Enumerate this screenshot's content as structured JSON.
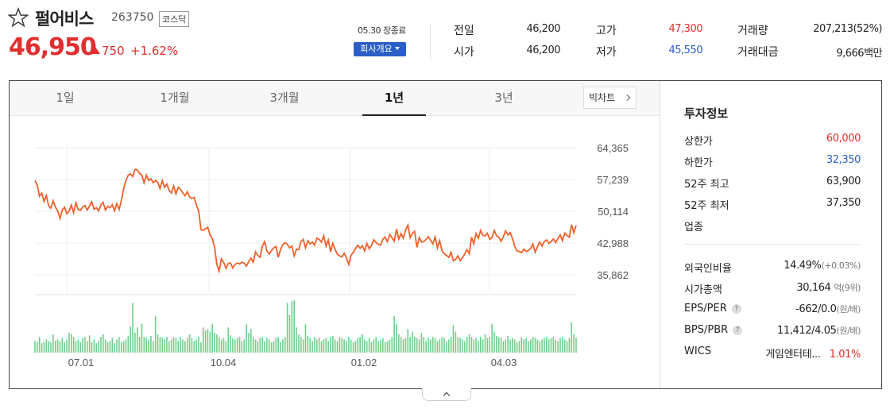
{
  "stock": {
    "name": "펄어비스",
    "code": "263750",
    "market": "코스닥",
    "price": "46,950",
    "change": "750",
    "rate": "+1.62%"
  },
  "status": {
    "market_status": "05.30 장종료",
    "company_button": "회사개요"
  },
  "summary": {
    "prev_label": "전일",
    "prev_value": "46,200",
    "open_label": "시가",
    "open_value": "46,200",
    "high_label": "고가",
    "high_value": "47,300",
    "low_label": "저가",
    "low_value": "45,550",
    "volume_label": "거래량",
    "volume_value": "207,213(52%)",
    "amount_label": "거래대금",
    "amount_value": "9,666백만"
  },
  "tabs": [
    {
      "label": "1일"
    },
    {
      "label": "1개월"
    },
    {
      "label": "3개월"
    },
    {
      "label": "1년"
    },
    {
      "label": "3년"
    }
  ],
  "active_tab": "1년",
  "bigchart_label": "빅차트",
  "sidebar": {
    "title": "투자정보",
    "upper_limit_label": "상한가",
    "upper_limit_value": "60,000",
    "lower_limit_label": "하한가",
    "lower_limit_value": "32,350",
    "high52_label": "52주 최고",
    "high52_value": "63,900",
    "low52_label": "52주 최저",
    "low52_value": "37,350",
    "industry_label": "업종",
    "foreign_label": "외국인비율",
    "foreign_value": "14.49%",
    "foreign_change": "(+0.03%)",
    "mktcap_label": "시가총액",
    "mktcap_value": "30,164",
    "mktcap_unit": "억(9위)",
    "eps_label": "EPS/PER",
    "eps_value": "-662/0.0",
    "eps_unit": "(원/배)",
    "bps_label": "BPS/PBR",
    "bps_value": "11,412/4.05",
    "bps_unit": "(원/배)",
    "wics_label": "WICS",
    "wics_value": "게임엔터테...",
    "wics_rate": "1.01%"
  },
  "colors": {
    "up": "#e12e2e",
    "down": "#2b5fc6",
    "line": "#f0602a",
    "volume": "#6fcf8a",
    "button": "#2b5fc6"
  },
  "chart_data": {
    "type": "line",
    "y_ticks": [
      "64,365",
      "57,239",
      "50,114",
      "42,988",
      "35,862"
    ],
    "ylim": [
      35862,
      64365
    ],
    "x_ticks": [
      "07.01",
      "10.04",
      "01.02",
      "04.03"
    ],
    "price": [
      57000,
      56000,
      53500,
      54200,
      52300,
      53600,
      51300,
      50800,
      52500,
      51000,
      50200,
      48500,
      50400,
      51000,
      49500,
      50100,
      51500,
      49800,
      52000,
      50500,
      50300,
      51100,
      51400,
      50400,
      51300,
      52200,
      50600,
      50900,
      50200,
      51500,
      52100,
      50400,
      51200,
      50900,
      51600,
      50200,
      51800,
      50500,
      52500,
      55200,
      57000,
      58200,
      58500,
      57900,
      59500,
      59400,
      58600,
      58200,
      56500,
      58200,
      57000,
      57400,
      56500,
      57000,
      56600,
      55200,
      57000,
      55500,
      56200,
      54800,
      54200,
      55800,
      54000,
      55500,
      55000,
      54300,
      53600,
      54500,
      53300,
      53000,
      53200,
      51500,
      50200,
      46000,
      45800,
      46200,
      46500,
      44800,
      44000,
      42100,
      38200,
      36700,
      39400,
      38600,
      37300,
      38400,
      38500,
      37400,
      38200,
      38500,
      38300,
      38700,
      38500,
      37800,
      38800,
      39600,
      38700,
      41000,
      40200,
      39800,
      42300,
      43300,
      41200,
      40500,
      41300,
      41900,
      42200,
      39800,
      41500,
      42600,
      43100,
      42700,
      41900,
      42300,
      40100,
      41600,
      41500,
      43300,
      43800,
      41900,
      43500,
      42800,
      43200,
      42500,
      44100,
      43800,
      43200,
      44600,
      42300,
      43700,
      41000,
      42900,
      41500,
      40500,
      40100,
      39900,
      40700,
      39700,
      38200,
      40200,
      40900,
      41800,
      42500,
      41800,
      42400,
      41200,
      42900,
      41700,
      42400,
      43700,
      43100,
      42700,
      42500,
      43800,
      44300,
      43300,
      44900,
      44200,
      43400,
      46100,
      43900,
      45100,
      44100,
      45900,
      47000,
      44200,
      45200,
      45600,
      42000,
      44200,
      43200,
      43300,
      43800,
      44400,
      43600,
      42800,
      44300,
      41900,
      43500,
      41300,
      40600,
      40200,
      39800,
      40900,
      39000,
      39300,
      40100,
      39000,
      39700,
      40500,
      41500,
      40600,
      44300,
      42800,
      45100,
      44100,
      45800,
      44700,
      44600,
      45200,
      43800,
      44200,
      45800,
      44600,
      44300,
      43400,
      44400,
      45700,
      44800,
      45300,
      44000,
      42300,
      41200,
      41100,
      40800,
      41600,
      41100,
      41300,
      41800,
      42800,
      40900,
      42200,
      43200,
      42300,
      43300,
      43700,
      42900,
      43300,
      43900,
      43100,
      44000,
      44800,
      43500,
      45200,
      44700,
      44300,
      47100,
      45300,
      46950
    ],
    "volume": [
      0.22,
      0.2,
      0.3,
      0.18,
      0.2,
      0.25,
      0.22,
      0.2,
      0.35,
      0.23,
      0.25,
      0.22,
      0.28,
      0.2,
      0.25,
      0.38,
      0.35,
      0.3,
      0.22,
      0.25,
      0.2,
      0.28,
      0.3,
      0.22,
      0.33,
      0.2,
      0.25,
      0.18,
      0.22,
      0.3,
      0.35,
      0.25,
      0.2,
      0.22,
      0.28,
      0.18,
      0.25,
      0.3,
      0.2,
      0.22,
      0.25,
      0.32,
      0.5,
      0.95,
      0.38,
      0.48,
      0.3,
      0.55,
      0.3,
      0.28,
      0.25,
      0.32,
      0.22,
      0.7,
      0.35,
      0.3,
      0.28,
      0.25,
      0.3,
      0.22,
      0.25,
      0.3,
      0.28,
      0.22,
      0.3,
      0.25,
      0.22,
      0.28,
      0.35,
      0.28,
      0.22,
      0.25,
      0.3,
      0.2,
      0.48,
      0.42,
      0.45,
      0.4,
      0.55,
      0.38,
      0.35,
      0.3,
      0.25,
      0.28,
      0.22,
      0.48,
      0.33,
      0.27,
      0.25,
      0.28,
      0.3,
      0.22,
      0.25,
      0.55,
      0.38,
      0.45,
      0.3,
      0.25,
      0.22,
      0.28,
      0.3,
      0.22,
      0.28,
      0.25,
      0.2,
      0.22,
      0.28,
      0.3,
      0.2,
      0.25,
      0.3,
      0.95,
      0.72,
      0.98,
      1.0,
      0.48,
      0.35,
      0.3,
      0.25,
      0.55,
      0.32,
      0.28,
      0.22,
      0.3,
      0.25,
      0.28,
      0.22,
      0.25,
      0.28,
      0.22,
      0.3,
      0.32,
      0.25,
      0.22,
      0.3,
      0.28,
      0.25,
      0.22,
      0.3,
      0.25,
      0.2,
      0.22,
      0.28,
      0.3,
      0.35,
      0.25,
      0.22,
      0.28,
      0.2,
      0.25,
      0.3,
      0.22,
      0.25,
      0.28,
      0.2,
      0.22,
      0.25,
      0.3,
      0.7,
      0.55,
      0.35,
      0.3,
      0.25,
      0.28,
      0.45,
      0.3,
      0.4,
      0.3,
      0.28,
      0.25,
      0.38,
      0.3,
      0.22,
      0.28,
      0.25,
      0.3,
      0.28,
      0.22,
      0.25,
      0.3,
      0.28,
      0.22,
      0.25,
      0.3,
      0.52,
      0.4,
      0.3,
      0.28,
      0.25,
      0.22,
      0.3,
      0.35,
      0.3,
      0.25,
      0.28,
      0.22,
      0.3,
      0.25,
      0.35,
      0.28,
      0.3,
      0.55,
      0.4,
      0.32,
      0.3,
      0.28,
      0.22,
      0.25,
      0.32,
      0.25,
      0.28,
      0.25,
      0.2,
      0.22,
      0.3,
      0.25,
      0.28,
      0.22,
      0.25,
      0.3,
      0.28,
      0.25,
      0.22,
      0.25,
      0.28,
      0.3,
      0.25,
      0.28,
      0.3,
      0.25,
      0.22,
      0.28,
      0.3,
      0.25,
      0.22,
      0.28,
      0.58,
      0.35,
      0.28
    ]
  }
}
